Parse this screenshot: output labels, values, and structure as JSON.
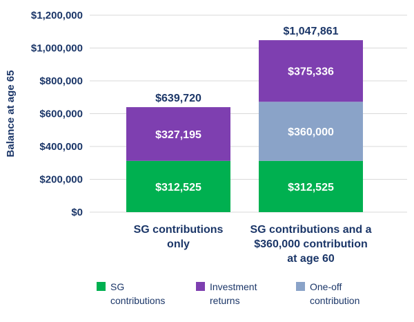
{
  "chart_data": {
    "type": "bar",
    "stacked": true,
    "ylabel": "Balance at age 65",
    "ylim": [
      0,
      1200000
    ],
    "yticks": [
      0,
      200000,
      400000,
      600000,
      800000,
      1000000,
      1200000
    ],
    "ytick_labels": [
      "$0",
      "$200,000",
      "$400,000",
      "$600,000",
      "$800,000",
      "$1,000,000",
      "$1,200,000"
    ],
    "categories": [
      {
        "lines": [
          "SG contributions",
          "only"
        ]
      },
      {
        "lines": [
          "SG contributions and a",
          "$360,000 contribution",
          "at age 60"
        ]
      }
    ],
    "series": [
      {
        "name": "SG contributions",
        "legend_lines": [
          "SG",
          "contributions"
        ],
        "color": "#00b050",
        "values": [
          312525,
          312525
        ],
        "labels": [
          "$312,525",
          "$312,525"
        ]
      },
      {
        "name": "One-off contribution",
        "legend_lines": [
          "One-off",
          "contribution"
        ],
        "color": "#8aa3c8",
        "values": [
          0,
          360000
        ],
        "labels": [
          "",
          "$360,000"
        ]
      },
      {
        "name": "Investment returns",
        "legend_lines": [
          "Investment",
          "returns"
        ],
        "color": "#7e3fb0",
        "values": [
          327195,
          375336
        ],
        "labels": [
          "$327,195",
          "$375,336"
        ]
      }
    ],
    "legend_order": [
      0,
      2,
      1
    ],
    "totals": [
      639720,
      1047861
    ],
    "total_labels": [
      "$639,720",
      "$1,047,861"
    ],
    "grid": true,
    "legend_position": "bottom"
  }
}
